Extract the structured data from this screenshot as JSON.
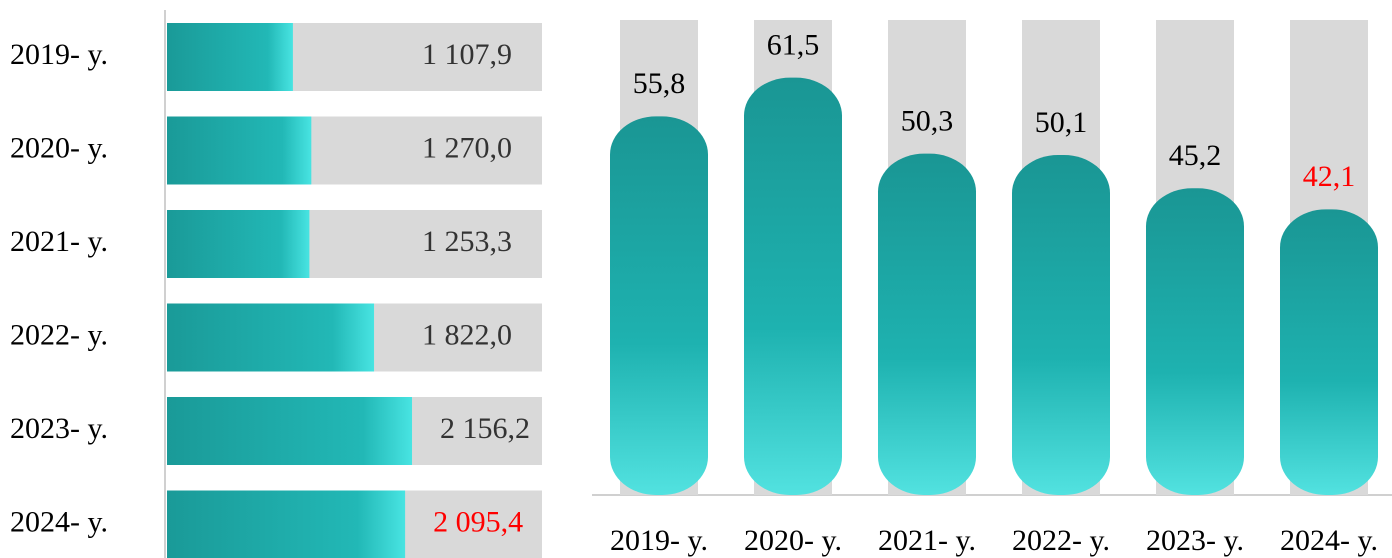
{
  "chart_data": [
    {
      "type": "hbar",
      "categories": [
        "2019- y.",
        "2020- y.",
        "2021- y.",
        "2022- y.",
        "2023- y.",
        "2024- y."
      ],
      "values": [
        1107.9,
        1270.0,
        1253.3,
        1822.0,
        2156.2,
        2095.4
      ],
      "value_labels": [
        "1 107,9",
        "1 270,0",
        "1 253,3",
        "1 822,0",
        "2 156,2",
        "2 095,4"
      ],
      "value_label_colors": [
        "#333333",
        "#333333",
        "#333333",
        "#333333",
        "#333333",
        "#ff0000"
      ],
      "color": "#1a9a98",
      "xlim": [
        0,
        3300
      ]
    },
    {
      "type": "bar",
      "categories": [
        "2019- y.",
        "2020- y.",
        "2021- y.",
        "2022- y.",
        "2023- y.",
        "2024- y."
      ],
      "values": [
        55.8,
        61.5,
        50.3,
        50.1,
        45.2,
        42.1
      ],
      "value_labels": [
        "55,8",
        "61,5",
        "50,3",
        "50,1",
        "45,2",
        "42,1"
      ],
      "value_label_colors": [
        "#000000",
        "#000000",
        "#000000",
        "#000000",
        "#000000",
        "#ff0000"
      ],
      "color": "#1a9a98",
      "ylim": [
        0,
        70
      ]
    }
  ]
}
